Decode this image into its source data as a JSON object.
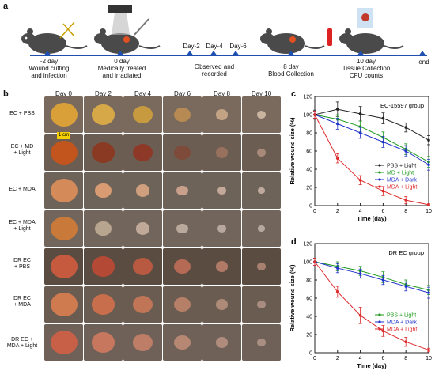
{
  "panel_labels": {
    "a": "a",
    "b": "b",
    "c": "c",
    "d": "d"
  },
  "timeline": {
    "events": [
      {
        "top": "-2 day",
        "bottom": [
          "Wound cutting",
          "and infection"
        ]
      },
      {
        "top": "0 day",
        "bottom": [
          "Medically treated",
          "and irradiated"
        ]
      },
      {
        "top": "8 day",
        "bottom": [
          "Blood Collection"
        ]
      },
      {
        "top": "10 day",
        "bottom": [
          "Tissue Collection",
          "CFU counts"
        ]
      }
    ],
    "days": [
      "Day-2",
      "Day-4",
      "Day-6"
    ],
    "observed": [
      "Observed and",
      "recorded"
    ],
    "end": "end"
  },
  "grid": {
    "columns": [
      "Day 0",
      "Day 2",
      "Day 4",
      "Day 6",
      "Day 8",
      "Day 10"
    ],
    "rows": [
      {
        "label": [
          "EC + PBS"
        ]
      },
      {
        "label": [
          "EC + MD",
          "+ Light"
        ]
      },
      {
        "label": [
          "EC + MDA"
        ]
      },
      {
        "label": [
          "EC + MDA",
          "+ Light"
        ]
      },
      {
        "label": [
          "DR EC",
          "+ PBS"
        ]
      },
      {
        "label": [
          "DR EC",
          "+ MDA"
        ]
      },
      {
        "label": [
          "DR EC +",
          "MDA + Light"
        ]
      }
    ],
    "scale_bar": "1 cm"
  },
  "chart_data": [
    {
      "type": "line",
      "title": "EC-15597 group",
      "xlabel": "Time (day)",
      "ylabel": "Relative wound size (%)",
      "x": [
        0,
        2,
        4,
        6,
        8,
        10
      ],
      "xlim": [
        0,
        10
      ],
      "ylim": [
        0,
        120
      ],
      "xticks": [
        "0",
        "2",
        "4",
        "6",
        "8",
        "10"
      ],
      "yticks": [
        "0",
        "20",
        "40",
        "60",
        "80",
        "100",
        "120"
      ],
      "legend_position": "right",
      "series": [
        {
          "name": "PBS + Light",
          "color": "#222222",
          "values": [
            100,
            106,
            101,
            96,
            86,
            72
          ],
          "err": [
            5,
            8,
            8,
            6,
            5,
            5
          ]
        },
        {
          "name": "MD + Light",
          "color": "#1e9a1e",
          "values": [
            100,
            95,
            87,
            75,
            62,
            48
          ],
          "err": [
            4,
            5,
            6,
            6,
            6,
            6
          ]
        },
        {
          "name": "MDA + Dark",
          "color": "#2233cc",
          "values": [
            100,
            90,
            80,
            70,
            60,
            45
          ],
          "err": [
            4,
            6,
            6,
            6,
            6,
            6
          ]
        },
        {
          "name": "MDA + Light",
          "color": "#dd2a2a",
          "values": [
            100,
            52,
            28,
            16,
            6,
            1
          ],
          "err": [
            4,
            5,
            5,
            5,
            4,
            1
          ]
        }
      ]
    },
    {
      "type": "line",
      "title": "DR EC group",
      "xlabel": "Time (day)",
      "ylabel": "Relative wound size (%)",
      "x": [
        0,
        2,
        4,
        6,
        8,
        10
      ],
      "xlim": [
        0,
        10
      ],
      "ylim": [
        0,
        120
      ],
      "xticks": [
        "0",
        "2",
        "4",
        "6",
        "8",
        "10"
      ],
      "yticks": [
        "0",
        "20",
        "40",
        "60",
        "80",
        "100",
        "120"
      ],
      "legend_position": "center-right",
      "series": [
        {
          "name": "PBS + Light",
          "color": "#1e9a1e",
          "values": [
            100,
            95,
            90,
            83,
            75,
            69
          ],
          "err": [
            4,
            5,
            5,
            6,
            5,
            5
          ]
        },
        {
          "name": "MDA + Dark",
          "color": "#2233cc",
          "values": [
            100,
            93,
            87,
            80,
            73,
            66
          ],
          "err": [
            4,
            5,
            5,
            5,
            5,
            6
          ]
        },
        {
          "name": "MDA + Light",
          "color": "#dd2a2a",
          "values": [
            100,
            67,
            41,
            24,
            12,
            3
          ],
          "err": [
            4,
            6,
            9,
            6,
            5,
            2
          ]
        }
      ]
    }
  ]
}
